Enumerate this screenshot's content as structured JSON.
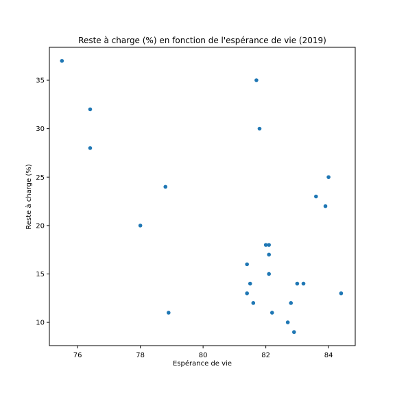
{
  "chart_data": {
    "type": "scatter",
    "title": "Reste à charge (%) en fonction de l'espérance de vie (2019)",
    "xlabel": "Espérance de vie",
    "ylabel": "Reste à charge (%)",
    "xlim": [
      75.1,
      84.85
    ],
    "ylim": [
      7.6,
      38.4
    ],
    "xticks": [
      76,
      78,
      80,
      82,
      84
    ],
    "yticks": [
      10,
      15,
      20,
      25,
      30,
      35
    ],
    "xtick_labels": [
      "76",
      "78",
      "80",
      "82",
      "84"
    ],
    "ytick_labels": [
      "10",
      "15",
      "20",
      "25",
      "30",
      "35"
    ],
    "grid": false,
    "marker_color": "#1f77b4",
    "points": [
      {
        "x": 75.5,
        "y": 37
      },
      {
        "x": 76.4,
        "y": 32
      },
      {
        "x": 76.4,
        "y": 28
      },
      {
        "x": 78.0,
        "y": 20
      },
      {
        "x": 78.8,
        "y": 24
      },
      {
        "x": 78.9,
        "y": 11
      },
      {
        "x": 81.4,
        "y": 16
      },
      {
        "x": 81.4,
        "y": 13
      },
      {
        "x": 81.5,
        "y": 14
      },
      {
        "x": 81.6,
        "y": 12
      },
      {
        "x": 81.7,
        "y": 35
      },
      {
        "x": 81.8,
        "y": 30
      },
      {
        "x": 82.0,
        "y": 18
      },
      {
        "x": 82.1,
        "y": 18
      },
      {
        "x": 82.1,
        "y": 17
      },
      {
        "x": 82.1,
        "y": 15
      },
      {
        "x": 82.2,
        "y": 11
      },
      {
        "x": 82.7,
        "y": 10
      },
      {
        "x": 82.8,
        "y": 12
      },
      {
        "x": 82.9,
        "y": 9
      },
      {
        "x": 83.0,
        "y": 14
      },
      {
        "x": 83.2,
        "y": 14
      },
      {
        "x": 83.6,
        "y": 23
      },
      {
        "x": 83.9,
        "y": 22
      },
      {
        "x": 84.0,
        "y": 25
      },
      {
        "x": 84.4,
        "y": 13
      }
    ]
  }
}
